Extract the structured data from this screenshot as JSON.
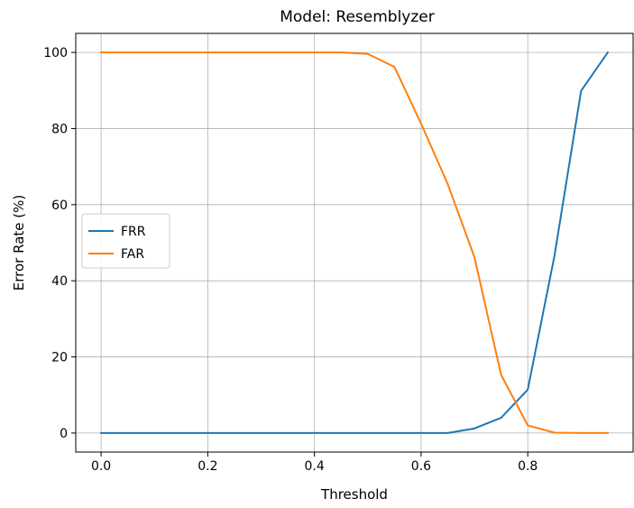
{
  "chart_data": {
    "type": "line",
    "title": "Model: Resemblyzer",
    "xlabel": "Threshold",
    "ylabel": "Error Rate (%)",
    "xlim": [
      -0.0475,
      0.9975
    ],
    "ylim": [
      -5,
      105
    ],
    "xticks": [
      0.0,
      0.2,
      0.4,
      0.6,
      0.8
    ],
    "xtick_labels": [
      "0.0",
      "0.2",
      "0.4",
      "0.6",
      "0.8"
    ],
    "yticks": [
      0,
      20,
      40,
      60,
      80,
      100
    ],
    "ytick_labels": [
      "0",
      "20",
      "40",
      "60",
      "80",
      "100"
    ],
    "grid": true,
    "legend_position": "center-left",
    "x": [
      0.0,
      0.05,
      0.1,
      0.15,
      0.2,
      0.25,
      0.3,
      0.35,
      0.4,
      0.45,
      0.5,
      0.55,
      0.6,
      0.65,
      0.7,
      0.75,
      0.8,
      0.85,
      0.9,
      0.95
    ],
    "series": [
      {
        "name": "FRR",
        "color": "#1f77b4",
        "values": [
          0,
          0,
          0,
          0,
          0,
          0,
          0,
          0,
          0,
          0,
          0,
          0,
          0,
          0,
          1.2,
          4,
          11.4,
          46.5,
          89.9,
          100
        ]
      },
      {
        "name": "FAR",
        "color": "#ff7f0e",
        "values": [
          100,
          100,
          100,
          100,
          100,
          100,
          100,
          100,
          100,
          100,
          99.6,
          96.2,
          81.3,
          65.4,
          46.2,
          15.3,
          2,
          0.1,
          0,
          0
        ]
      }
    ]
  }
}
